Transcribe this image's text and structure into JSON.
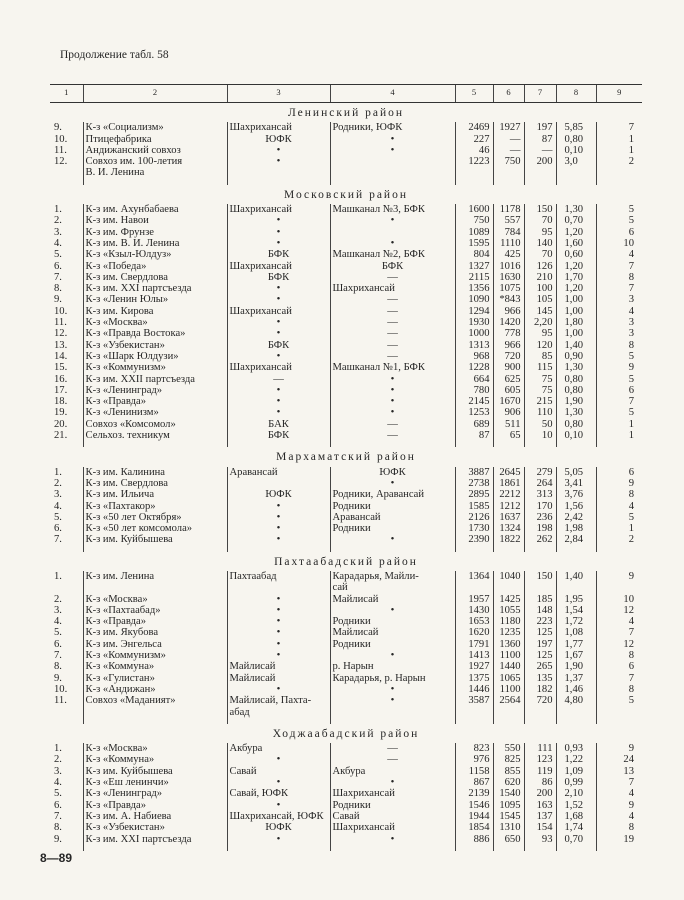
{
  "continuation": "Продолжение табл. 58",
  "column_headers": [
    "1",
    "2",
    "3",
    "4",
    "5",
    "6",
    "7",
    "8",
    "9"
  ],
  "sections": [
    {
      "title": "Ленинский район",
      "rows": [
        [
          "9.",
          "К-з «Социализм»",
          "Шахрихансай",
          "Родники, ЮФК",
          "2469",
          "1927",
          "197",
          "5,85",
          "7"
        ],
        [
          "10.",
          "Птицефабрика",
          "ЮФК",
          "•",
          "227",
          "—",
          "87",
          "0,80",
          "1"
        ],
        [
          "11.",
          "Андижанский совхоз",
          "•",
          "•",
          "46",
          "—",
          "—",
          "0,10",
          "1"
        ],
        [
          "12.",
          "Совхоз им. 100-летия\n    В. И. Ленина",
          "•",
          "",
          "1223",
          "750",
          "200",
          "3,0",
          "2"
        ]
      ]
    },
    {
      "title": "Московский район",
      "rows": [
        [
          "1.",
          "К-з им. Ахунбабаева",
          "Шахрихансай",
          "Машканал №3, БФК",
          "1600",
          "1178",
          "150",
          "1,30",
          "5"
        ],
        [
          "2.",
          "К-з им. Навои",
          "•",
          "•",
          "750",
          "557",
          "70",
          "0,70",
          "5"
        ],
        [
          "3.",
          "К-з им. Фрунзе",
          "•",
          "",
          "1089",
          "784",
          "95",
          "1,20",
          "6"
        ],
        [
          "4.",
          "К-з им. В. И. Ленина",
          "•",
          "•",
          "1595",
          "1110",
          "140",
          "1,60",
          "10"
        ],
        [
          "5.",
          "К-з «Кзыл-Юлдуз»",
          "БФК",
          "Машканал №2, БФК",
          "804",
          "425",
          "70",
          "0,60",
          "4"
        ],
        [
          "6.",
          "К-з «Победа»",
          "Шахрихансай",
          "БФК",
          "1327",
          "1016",
          "126",
          "1,20",
          "7"
        ],
        [
          "7.",
          "К-з им. Свердлова",
          "БФК",
          "—",
          "2115",
          "1630",
          "210",
          "1,70",
          "8"
        ],
        [
          "8.",
          "К-з им. XXI партсъезда",
          "•",
          "Шахрихансай",
          "1356",
          "1075",
          "100",
          "1,20",
          "7"
        ],
        [
          "9.",
          "К-з «Ленин Юлы»",
          "•",
          "—",
          "1090",
          "*843",
          "105",
          "1,00",
          "3"
        ],
        [
          "10.",
          "К-з им. Кирова",
          "Шахрихансай",
          "—",
          "1294",
          "966",
          "145",
          "1,00",
          "4"
        ],
        [
          "11.",
          "К-з «Москва»",
          "•",
          "—",
          "1930",
          "1420",
          "2,20",
          "1,80",
          "3"
        ],
        [
          "12.",
          "К-з «Правда Востока»",
          "•",
          "—",
          "1000",
          "778",
          "95",
          "1,00",
          "3"
        ],
        [
          "13.",
          "К-з «Узбекистан»",
          "БФК",
          "—",
          "1313",
          "966",
          "120",
          "1,40",
          "8"
        ],
        [
          "14.",
          "К-з «Шарк Юлдузи»",
          "•",
          "—",
          "968",
          "720",
          "85",
          "0,90",
          "5"
        ],
        [
          "15.",
          "К-з «Коммунизм»",
          "Шахрихансай",
          "Машканал №1, БФК",
          "1228",
          "900",
          "115",
          "1,30",
          "9"
        ],
        [
          "16.",
          "К-з им. XXII партсъезда",
          "—",
          "•",
          "664",
          "625",
          "75",
          "0,80",
          "5"
        ],
        [
          "17.",
          "К-з «Ленинград»",
          "•",
          "•",
          "780",
          "605",
          "75",
          "0,80",
          "6"
        ],
        [
          "18.",
          "К-з «Правда»",
          "•",
          "•",
          "2145",
          "1670",
          "215",
          "1,90",
          "7"
        ],
        [
          "19.",
          "К-з «Ленинизм»",
          "•",
          "•",
          "1253",
          "906",
          "110",
          "1,30",
          "5"
        ],
        [
          "20.",
          "Совхоз «Комсомол»",
          "БАК",
          "—",
          "689",
          "511",
          "50",
          "0,80",
          "1"
        ],
        [
          "21.",
          "Сельхоз. техникум",
          "БФК",
          "—",
          "87",
          "65",
          "10",
          "0,10",
          "1"
        ]
      ]
    },
    {
      "title": "Мархаматский район",
      "rows": [
        [
          "1.",
          "К-з им. Калинина",
          "Аравансай",
          "ЮФК",
          "3887",
          "2645",
          "279",
          "5,05",
          "6"
        ],
        [
          "2.",
          "К-з им. Свердлова",
          "",
          "•",
          "2738",
          "1861",
          "264",
          "3,41",
          "9"
        ],
        [
          "3.",
          "К-з им. Ильича",
          "ЮФК",
          "Родники, Аравансай",
          "2895",
          "2212",
          "313",
          "3,76",
          "8"
        ],
        [
          "4.",
          "К-з «Пахтакор»",
          "•",
          "Родники",
          "1585",
          "1212",
          "170",
          "1,56",
          "4"
        ],
        [
          "5.",
          "К-з «50 лет Октября»",
          "•",
          "Аравансай",
          "2126",
          "1637",
          "236",
          "2,42",
          "5"
        ],
        [
          "6.",
          "К-з «50 лет комсомола»",
          "•",
          "Родники",
          "1730",
          "1324",
          "198",
          "1,98",
          "1"
        ],
        [
          "7.",
          "К-з им. Куйбышева",
          "•",
          "•",
          "2390",
          "1822",
          "262",
          "2,84",
          "2"
        ]
      ]
    },
    {
      "title": "Пахтаабадский район",
      "rows": [
        [
          "1.",
          "К-з им. Ленина",
          "Пахтаабад",
          "Карадарья, Майли-\nсай",
          "1364",
          "1040",
          "150",
          "1,40",
          "9"
        ],
        [
          "2.",
          "К-з «Москва»",
          "•",
          "Майлисай",
          "1957",
          "1425",
          "185",
          "1,95",
          "10"
        ],
        [
          "3.",
          "К-з «Пахтаабад»",
          "•",
          "•",
          "1430",
          "1055",
          "148",
          "1,54",
          "12"
        ],
        [
          "4.",
          "К-з «Правда»",
          "•",
          "Родники",
          "1653",
          "1180",
          "223",
          "1,72",
          "4"
        ],
        [
          "5.",
          "К-з им. Якубова",
          "•",
          "Майлисай",
          "1620",
          "1235",
          "125",
          "1,08",
          "7"
        ],
        [
          "6.",
          "К-з им. Энгельса",
          "•",
          "Родники",
          "1791",
          "1360",
          "197",
          "1,77",
          "12"
        ],
        [
          "7.",
          "К-з «Коммунизм»",
          "•",
          "•",
          "1413",
          "1100",
          "125",
          "1,67",
          "8"
        ],
        [
          "8.",
          "К-з «Коммуна»",
          "Майлисай",
          "р. Нарын",
          "1927",
          "1440",
          "265",
          "1,90",
          "6"
        ],
        [
          "9.",
          "К-з «Гулистан»",
          "Майлисай",
          "Карадарья, р. Нарын",
          "1375",
          "1065",
          "135",
          "1,37",
          "7"
        ],
        [
          "10.",
          "К-з «Андижан»",
          "•",
          "•",
          "1446",
          "1100",
          "182",
          "1,46",
          "8"
        ],
        [
          "11.",
          "Совхоз «Маданият»",
          "Майлисай, Пахта-\nабад",
          "•",
          "3587",
          "2564",
          "720",
          "4,80",
          "5"
        ]
      ]
    },
    {
      "title": "Ходжаабадский район",
      "rows": [
        [
          "1.",
          "К-з «Москва»",
          "Акбура",
          "—",
          "823",
          "550",
          "111",
          "0,93",
          "9"
        ],
        [
          "2.",
          "К-з «Коммуна»",
          "•",
          "—",
          "976",
          "825",
          "123",
          "1,22",
          "24"
        ],
        [
          "3.",
          "К-з им. Куйбышева",
          "Савай",
          "Акбура",
          "1158",
          "855",
          "119",
          "1,09",
          "13"
        ],
        [
          "4.",
          "К-з «Еш ленинчи»",
          "•",
          "•",
          "867",
          "620",
          "86",
          "0,99",
          "7"
        ],
        [
          "5.",
          "К-з «Ленинград»",
          "Савай, ЮФК",
          "Шахрихансай",
          "2139",
          "1540",
          "200",
          "2,10",
          "4"
        ],
        [
          "6.",
          "К-з «Правда»",
          "•",
          "Родники",
          "1546",
          "1095",
          "163",
          "1,52",
          "9"
        ],
        [
          "7.",
          "К-з им. А. Набиева",
          "Шахрихансай, ЮФК",
          "Савай",
          "1944",
          "1545",
          "137",
          "1,68",
          "4"
        ],
        [
          "8.",
          "К-з «Узбекистан»",
          "ЮФК",
          "Шахрихансай",
          "1854",
          "1310",
          "154",
          "1,74",
          "8"
        ],
        [
          "9.",
          "К-з им. XXI партсъезда",
          "•",
          "•",
          "886",
          "650",
          "93",
          "0,70",
          "19"
        ]
      ]
    }
  ],
  "footer": "8—89"
}
